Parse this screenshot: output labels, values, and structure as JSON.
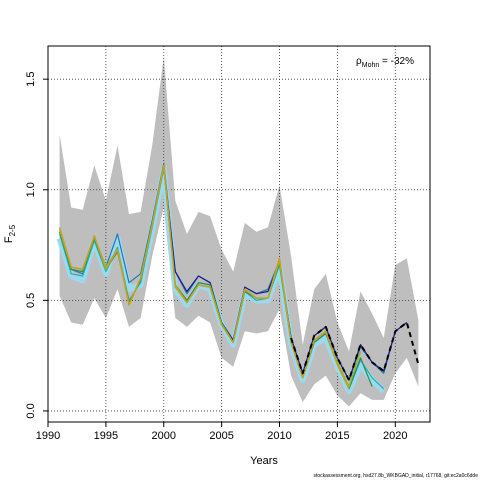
{
  "chart_data": {
    "type": "line",
    "xlabel": "Years",
    "ylabel_main": "F",
    "ylabel_sub": "2-5",
    "xlim": [
      1990,
      2023
    ],
    "ylim": [
      -0.05,
      1.65
    ],
    "xticks": [
      1990,
      1995,
      2000,
      2005,
      2010,
      2015,
      2020
    ],
    "yticks": [
      0.0,
      0.5,
      1.0,
      1.5
    ],
    "ytick_labels": [
      "0.0",
      "0.5",
      "1.0",
      "1.5"
    ],
    "grid": true,
    "annotation": {
      "symbol": "ρ",
      "subscript": "Mohn",
      "text": " = -32%"
    },
    "footer": "stockassessment.org, hsd27.8b_WKBGAD_initial, r17768, git:ec2a0c6dde",
    "band": {
      "x": [
        1991,
        1992,
        1993,
        1994,
        1995,
        1996,
        1997,
        1998,
        1999,
        2000,
        2001,
        2002,
        2003,
        2004,
        2005,
        2006,
        2007,
        2008,
        2009,
        2010,
        2011,
        2012,
        2013,
        2014,
        2015,
        2016,
        2017,
        2018,
        2019,
        2020,
        2021,
        2022
      ],
      "upper": [
        1.25,
        0.92,
        0.91,
        1.11,
        0.95,
        1.2,
        0.89,
        0.9,
        1.2,
        1.6,
        0.95,
        0.8,
        0.9,
        0.88,
        0.73,
        0.63,
        0.85,
        0.81,
        0.83,
        1.02,
        0.7,
        0.3,
        0.55,
        0.62,
        0.4,
        0.27,
        0.54,
        0.44,
        0.33,
        0.66,
        0.69,
        0.41
      ],
      "lower": [
        0.52,
        0.4,
        0.39,
        0.51,
        0.42,
        0.55,
        0.38,
        0.42,
        0.7,
        0.92,
        0.42,
        0.38,
        0.43,
        0.4,
        0.24,
        0.2,
        0.36,
        0.35,
        0.36,
        0.46,
        0.16,
        0.04,
        0.12,
        0.16,
        0.07,
        0.02,
        0.08,
        0.05,
        0.05,
        0.17,
        0.24,
        0.11
      ],
      "color": "#bebebe"
    },
    "series": [
      {
        "color": "#9cd8ee",
        "width": 6,
        "dash": "",
        "x": [
          1991,
          1992,
          1993,
          1994,
          1995,
          1996,
          1997,
          1998,
          1999,
          2000,
          2001,
          2002,
          2003,
          2004,
          2005,
          2006,
          2007,
          2008,
          2009,
          2010,
          2011,
          2012,
          2013,
          2014,
          2015,
          2016,
          2017,
          2018,
          2019
        ],
        "y": [
          0.78,
          0.61,
          0.59,
          0.77,
          0.62,
          0.78,
          0.55,
          0.57,
          0.82,
          1.09,
          0.55,
          0.48,
          0.57,
          0.55,
          0.39,
          0.3,
          0.53,
          0.5,
          0.5,
          0.65,
          0.3,
          0.14,
          0.3,
          0.33,
          0.2,
          0.09,
          0.21,
          0.14,
          0.09
        ]
      },
      {
        "color": "#1f78b4",
        "width": 1.2,
        "dash": "",
        "x": [
          1991,
          1992,
          1993,
          1994,
          1995,
          1996,
          1997,
          1998,
          1999,
          2000,
          2001,
          2002,
          2003,
          2004,
          2005,
          2006,
          2007,
          2008,
          2009,
          2010,
          2011,
          2012,
          2013,
          2014,
          2015,
          2016,
          2017,
          2018,
          2019,
          2020,
          2021
        ],
        "y": [
          0.81,
          0.64,
          0.62,
          0.79,
          0.65,
          0.8,
          0.58,
          0.62,
          0.86,
          1.12,
          0.63,
          0.53,
          0.61,
          0.58,
          0.4,
          0.32,
          0.56,
          0.53,
          0.55,
          0.68,
          0.33,
          0.17,
          0.34,
          0.38,
          0.24,
          0.14,
          0.29,
          0.22,
          0.17,
          0.36,
          0.4
        ]
      },
      {
        "color": "#1a1a8c",
        "width": 1.2,
        "dash": "",
        "x": [
          2000,
          2001,
          2002,
          2003,
          2004,
          2005,
          2006,
          2007,
          2008,
          2009,
          2010,
          2011,
          2012,
          2013,
          2014,
          2015,
          2016,
          2017,
          2018,
          2019,
          2020,
          2021
        ],
        "y": [
          1.1,
          0.63,
          0.54,
          0.61,
          0.58,
          0.4,
          0.32,
          0.56,
          0.53,
          0.54,
          0.67,
          0.33,
          0.17,
          0.34,
          0.38,
          0.24,
          0.14,
          0.3,
          0.22,
          0.18,
          0.36,
          0.4
        ]
      },
      {
        "color": "#20b2aa",
        "width": 1.2,
        "dash": "",
        "x": [
          1991,
          1992,
          1993,
          1994,
          1995,
          1996,
          1997,
          1998,
          1999,
          2000,
          2001,
          2002,
          2003,
          2004,
          2005,
          2006,
          2007,
          2008,
          2009,
          2010,
          2011,
          2012,
          2013,
          2014,
          2015,
          2016,
          2017,
          2018,
          2019
        ],
        "y": [
          0.8,
          0.62,
          0.61,
          0.77,
          0.63,
          0.74,
          0.5,
          0.58,
          0.83,
          1.1,
          0.57,
          0.5,
          0.58,
          0.57,
          0.4,
          0.31,
          0.54,
          0.5,
          0.51,
          0.66,
          0.31,
          0.15,
          0.31,
          0.35,
          0.21,
          0.1,
          0.23,
          0.15,
          0.1
        ]
      },
      {
        "color": "#2e8b57",
        "width": 1.2,
        "dash": "",
        "x": [
          1991,
          1992,
          1993,
          1994,
          1995,
          1996,
          1997,
          1998,
          1999,
          2000,
          2001,
          2002,
          2003,
          2004,
          2005,
          2006,
          2007,
          2008,
          2009,
          2010,
          2011,
          2012,
          2013,
          2014,
          2015,
          2016,
          2017,
          2018
        ],
        "y": [
          0.81,
          0.64,
          0.63,
          0.78,
          0.64,
          0.72,
          0.49,
          0.59,
          0.84,
          1.1,
          0.57,
          0.5,
          0.58,
          0.57,
          0.4,
          0.31,
          0.54,
          0.51,
          0.51,
          0.67,
          0.31,
          0.15,
          0.31,
          0.35,
          0.22,
          0.1,
          0.24,
          0.11
        ]
      },
      {
        "color": "#8fb82a",
        "width": 1.5,
        "dash": "",
        "x": [
          1991,
          1992,
          1993,
          1994,
          1995,
          1996,
          1997,
          1998,
          1999,
          2000,
          2001,
          2002,
          2003,
          2004,
          2005,
          2006,
          2007,
          2008,
          2009,
          2010,
          2011,
          2012,
          2013,
          2014,
          2015,
          2016,
          2017
        ],
        "y": [
          0.82,
          0.65,
          0.64,
          0.79,
          0.64,
          0.73,
          0.48,
          0.6,
          0.84,
          1.11,
          0.57,
          0.49,
          0.57,
          0.56,
          0.39,
          0.31,
          0.55,
          0.51,
          0.51,
          0.68,
          0.31,
          0.15,
          0.32,
          0.36,
          0.22,
          0.11,
          0.27
        ]
      },
      {
        "color": "#c8a020",
        "width": 1.5,
        "dash": "",
        "x": [
          1991,
          1992,
          1993,
          1994,
          1995,
          1996,
          1997,
          1998,
          1999,
          2000,
          2001,
          2002,
          2003,
          2004,
          2005,
          2006,
          2007,
          2008,
          2009,
          2010,
          2011,
          2012,
          2013,
          2014,
          2015,
          2016
        ],
        "y": [
          0.83,
          0.65,
          0.64,
          0.79,
          0.65,
          0.73,
          0.48,
          0.6,
          0.84,
          1.11,
          0.56,
          0.49,
          0.57,
          0.56,
          0.39,
          0.31,
          0.55,
          0.51,
          0.51,
          0.69,
          0.31,
          0.15,
          0.32,
          0.36,
          0.21,
          0.1
        ]
      },
      {
        "color": "#000000",
        "width": 2,
        "dash": "5,4",
        "x": [
          2011,
          2012,
          2013,
          2014,
          2015,
          2016,
          2017,
          2018,
          2019,
          2020,
          2021,
          2022
        ],
        "y": [
          0.33,
          0.17,
          0.34,
          0.38,
          0.24,
          0.14,
          0.3,
          0.22,
          0.18,
          0.36,
          0.4,
          0.21
        ]
      }
    ]
  }
}
